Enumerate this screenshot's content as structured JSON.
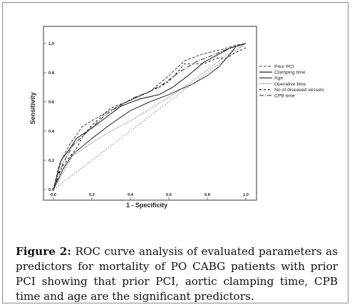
{
  "chart_data": {
    "type": "line",
    "title": "",
    "xlabel": "1 - Specificity",
    "ylabel": "Sensitivity",
    "xlim": [
      0,
      1
    ],
    "ylim": [
      0,
      1
    ],
    "xticks": [
      "0.0",
      "0.2",
      "0.4",
      "0.6",
      "0.8",
      "1.0"
    ],
    "yticks": [
      "0.0",
      "0.2",
      "0.4",
      "0.6",
      "0.8",
      "1.0"
    ],
    "grid": false,
    "legend_position": "right",
    "series": [
      {
        "name": "Prior PCI",
        "dash": "4,2",
        "color": "#444444",
        "x": [
          0,
          0.03,
          0.08,
          0.15,
          0.25,
          0.35,
          0.5,
          0.6,
          0.68,
          0.78,
          0.88,
          0.95,
          1.0
        ],
        "y": [
          0,
          0.17,
          0.3,
          0.43,
          0.51,
          0.58,
          0.67,
          0.78,
          0.88,
          0.93,
          0.96,
          0.99,
          1.0
        ]
      },
      {
        "name": "Clamping time",
        "dash": "",
        "color": "#111111",
        "x": [
          0,
          0.04,
          0.08,
          0.12,
          0.2,
          0.28,
          0.35,
          0.45,
          0.55,
          0.62,
          0.7,
          0.78,
          0.85,
          0.92,
          1.0
        ],
        "y": [
          0,
          0.2,
          0.27,
          0.35,
          0.42,
          0.5,
          0.57,
          0.62,
          0.65,
          0.7,
          0.78,
          0.87,
          0.92,
          0.97,
          1.0
        ]
      },
      {
        "name": "Age",
        "dash": "",
        "color": "#2a2a2a",
        "x": [
          0,
          0.05,
          0.1,
          0.2,
          0.3,
          0.4,
          0.5,
          0.6,
          0.65,
          0.72,
          0.8,
          0.86,
          0.9,
          0.95,
          1.0
        ],
        "y": [
          0,
          0.14,
          0.24,
          0.35,
          0.45,
          0.54,
          0.6,
          0.65,
          0.68,
          0.72,
          0.78,
          0.84,
          0.9,
          0.98,
          1.0
        ]
      },
      {
        "name": "Operative time",
        "dash": "1,1.5",
        "color": "#555555",
        "x": [
          0,
          0.1,
          0.2,
          0.3,
          0.4,
          0.5,
          0.6,
          0.7,
          0.8,
          0.9,
          1.0
        ],
        "y": [
          0,
          0.23,
          0.32,
          0.4,
          0.47,
          0.55,
          0.63,
          0.72,
          0.82,
          0.92,
          1.0
        ]
      },
      {
        "name": "No of diseased vessels",
        "dash": "3,3",
        "color": "#111111",
        "x": [
          0,
          0.02,
          0.07,
          0.12,
          0.15,
          0.2,
          0.25,
          0.3,
          0.38,
          0.48,
          0.55,
          0.6,
          0.65,
          0.68,
          0.78,
          0.85,
          0.9,
          0.95,
          1.0
        ],
        "y": [
          0,
          0.1,
          0.2,
          0.28,
          0.36,
          0.44,
          0.5,
          0.56,
          0.6,
          0.66,
          0.7,
          0.74,
          0.81,
          0.86,
          0.86,
          0.9,
          0.9,
          0.94,
          0.97
        ]
      },
      {
        "name": "CPB time",
        "dash": "6,2,1,2",
        "color": "#222222",
        "x": [
          0,
          0.05,
          0.1,
          0.18,
          0.27,
          0.34,
          0.42,
          0.5,
          0.58,
          0.65,
          0.75,
          0.83,
          0.9,
          1.0
        ],
        "y": [
          0,
          0.18,
          0.3,
          0.4,
          0.51,
          0.57,
          0.63,
          0.67,
          0.73,
          0.8,
          0.88,
          0.92,
          0.96,
          1.0
        ]
      },
      {
        "name": "",
        "dash": "2,2",
        "color": "#666666",
        "x": [
          0,
          1
        ],
        "y": [
          0,
          1
        ]
      }
    ]
  },
  "caption": {
    "label": "Figure 2:",
    "text": " ROC curve analysis of evaluated parameters as predictors for mortality of PO CABG patients with prior PCI showing that prior PCI, aortic clamping time, CPB time and age are the significant predictors."
  }
}
